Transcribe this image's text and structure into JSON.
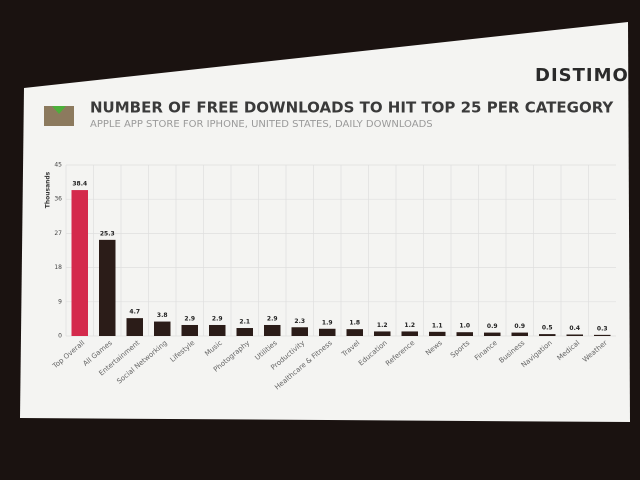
{
  "chart_data": {
    "type": "bar",
    "title": "NUMBER OF FREE DOWNLOADS TO HIT TOP 25 PER CATEGORY",
    "subtitle": "APPLE APP STORE FOR IPHONE, UNITED STATES, DAILY DOWNLOADS",
    "brand": "DISTIMO",
    "y_label": "Thousands",
    "categories": [
      "Top Overall",
      "All Games",
      "Entertainment",
      "Social Networking",
      "Lifestyle",
      "Music",
      "Photography",
      "Utilities",
      "Productivity",
      "Healthcare & Fitness",
      "Travel",
      "Education",
      "Reference",
      "News",
      "Sports",
      "Finance",
      "Business",
      "Navigation",
      "Medical",
      "Weather"
    ],
    "values": [
      38.4,
      25.3,
      4.7,
      3.8,
      2.9,
      2.9,
      2.1,
      2.9,
      2.3,
      1.9,
      1.8,
      1.2,
      1.2,
      1.1,
      1.0,
      0.9,
      0.9,
      0.5,
      0.4,
      0.3
    ],
    "value_labels": [
      "38.4",
      "25.3",
      "4.7",
      "3.8",
      "2.9",
      "2.9",
      "2.1",
      "2.9",
      "2.3",
      "1.9",
      "1.8",
      "1.2",
      "1.2",
      "1.1",
      "1.0",
      "0.9",
      "0.9",
      "0.5",
      "0.4",
      "0.3"
    ],
    "colors": [
      "#d42a4c",
      "#2b1c18",
      "#2b1c18",
      "#2b1c18",
      "#2b1c18",
      "#2b1c18",
      "#2b1c18",
      "#2b1c18",
      "#2b1c18",
      "#2b1c18",
      "#2b1c18",
      "#2b1c18",
      "#2b1c18",
      "#2b1c18",
      "#2b1c18",
      "#2b1c18",
      "#2b1c18",
      "#2b1c18",
      "#2b1c18",
      "#2b1c18"
    ],
    "ylim": [
      0,
      45
    ],
    "yticks": [
      0,
      9,
      18,
      27,
      36,
      45
    ],
    "grid": true
  }
}
